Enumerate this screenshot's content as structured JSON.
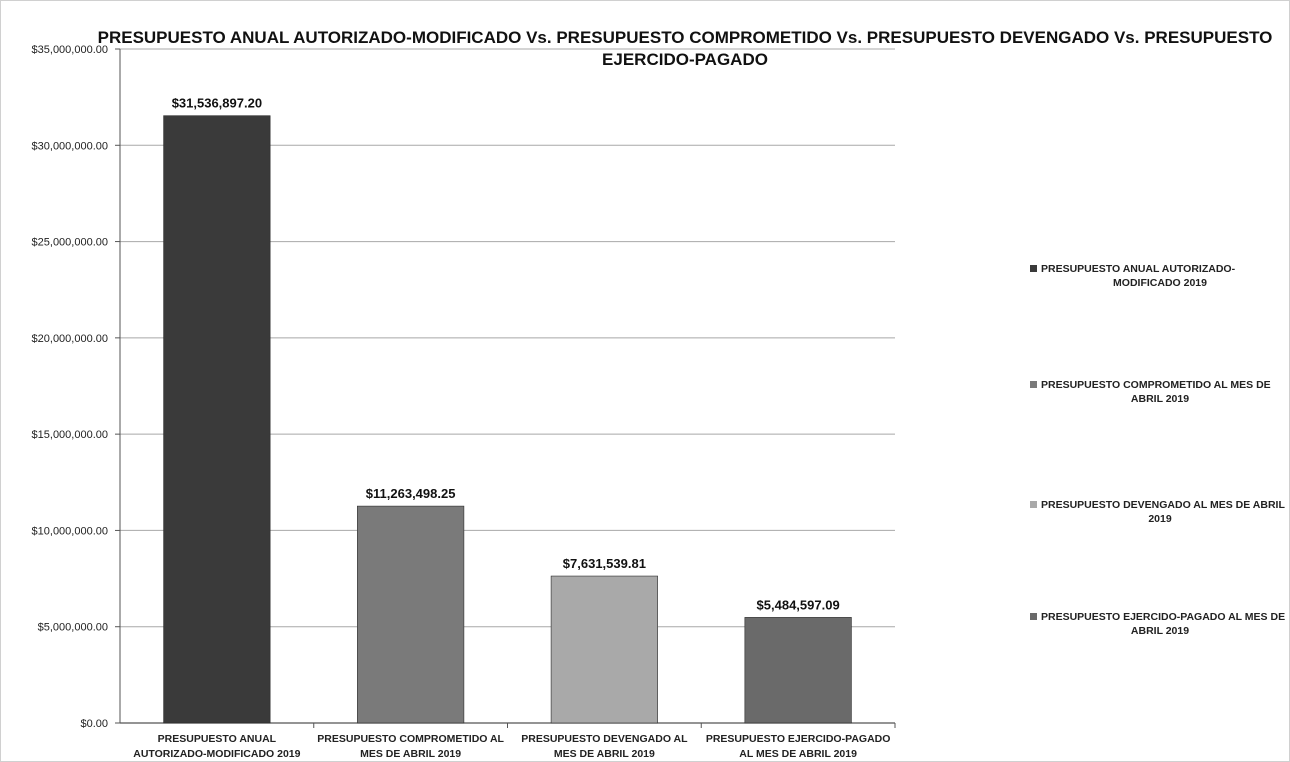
{
  "chart_data": {
    "type": "bar",
    "title_lines": [
      "PRESUPUESTO ANUAL AUTORIZADO-MODIFICADO Vs. PRESUPUESTO COMPROMETIDO Vs. PRESUPUESTO DEVENGADO Vs. PRESUPUESTO",
      "EJERCIDO-PAGADO"
    ],
    "categories": [
      [
        "PRESUPUESTO ANUAL",
        "AUTORIZADO-MODIFICADO 2019"
      ],
      [
        "PRESUPUESTO COMPROMETIDO AL",
        "MES DE ABRIL 2019"
      ],
      [
        "PRESUPUESTO DEVENGADO AL",
        "MES DE ABRIL 2019"
      ],
      [
        "PRESUPUESTO EJERCIDO-PAGADO",
        "AL MES DE ABRIL 2019"
      ]
    ],
    "values": [
      31536897.2,
      11263498.25,
      7631539.81,
      5484597.09
    ],
    "data_labels": [
      "$31,536,897.20",
      "$11,263,498.25",
      "$7,631,539.81",
      "$5,484,597.09"
    ],
    "colors": [
      "#3a3a3a",
      "#7a7a7a",
      "#a9a9a9",
      "#6a6a6a"
    ],
    "ylim": [
      0,
      35000000
    ],
    "yticks": [
      {
        "value": 0,
        "label": "$0.00"
      },
      {
        "value": 5000000,
        "label": "$5,000,000.00"
      },
      {
        "value": 10000000,
        "label": "$10,000,000.00"
      },
      {
        "value": 15000000,
        "label": "$15,000,000.00"
      },
      {
        "value": 20000000,
        "label": "$20,000,000.00"
      },
      {
        "value": 25000000,
        "label": "$25,000,000.00"
      },
      {
        "value": 30000000,
        "label": "$30,000,000.00"
      },
      {
        "value": 35000000,
        "label": "$35,000,000.00"
      }
    ],
    "grid": true,
    "legend_position": "right",
    "legend": [
      {
        "lines": [
          "PRESUPUESTO ANUAL AUTORIZADO-",
          "MODIFICADO 2019"
        ],
        "color": "#3a3a3a"
      },
      {
        "lines": [
          "PRESUPUESTO COMPROMETIDO AL MES DE",
          "ABRIL 2019"
        ],
        "color": "#7a7a7a"
      },
      {
        "lines": [
          "PRESUPUESTO DEVENGADO AL MES DE ABRIL",
          "2019"
        ],
        "color": "#a9a9a9"
      },
      {
        "lines": [
          "PRESUPUESTO EJERCIDO-PAGADO AL MES DE",
          "ABRIL 2019"
        ],
        "color": "#6a6a6a"
      }
    ]
  }
}
